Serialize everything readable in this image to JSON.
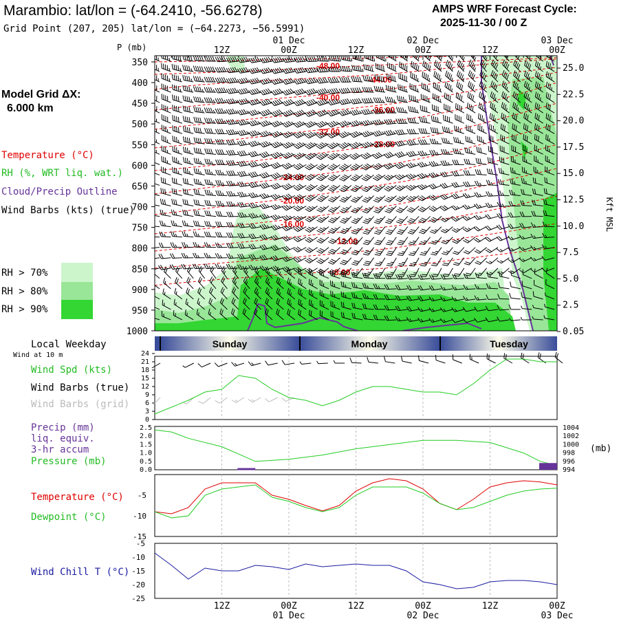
{
  "header": {
    "title": "Marambio:  lat/lon = (-64.2410, -56.6278)",
    "grid_point": "Grid Point (207, 205) lat/lon = (−64.2273, −56.5991)",
    "forecast_cycle_label": "AMPS WRF Forecast Cycle:",
    "forecast_cycle_value": "2025-11-30 / 00  Z"
  },
  "left_legend": {
    "model_grid_label": "Model Grid ΔX:",
    "model_grid_value": "6.000 km",
    "temperature": "Temperature (°C)",
    "rh": "RH (%, WRT liq. wat.)",
    "cloud": "Cloud/Precip Outline",
    "wind": "Wind Barbs (kts) (true)",
    "rh70": "RH > 70%",
    "rh80": "RH > 80%",
    "rh90": "RH > 90%",
    "local_weekday": "Local Weekday",
    "wind_at_10m": "Wind at 10 m",
    "wind_spd": "Wind Spd (kts)",
    "wind_barbs_true": "Wind Barbs (true)",
    "wind_barbs_grid": "Wind Barbs (grid)",
    "precip1": "Precip (mm)",
    "precip2": "liq. equiv.",
    "precip3": "3-hr accum",
    "pressure": "Pressure (mb)",
    "temp2": "Temperature (°C)",
    "dewpoint": "Dewpoint (°C)",
    "windchill": "Wind Chill T (°C)"
  },
  "colors": {
    "temperature": "#e00000",
    "rh": "#22cc22",
    "rh70": "#ccf5cc",
    "rh80": "#99e699",
    "rh90": "#33d633",
    "cloud": "#663399",
    "windchill": "#1a1aa0",
    "grid_barbs": "#bbbbbb"
  },
  "chart_data": [
    {
      "type": "contour",
      "name": "time-pressure cross section",
      "y_axis_label": "P (mb)",
      "y_ticks": [
        350,
        400,
        450,
        500,
        550,
        600,
        650,
        700,
        750,
        800,
        850,
        900,
        950,
        1000
      ],
      "right_axis_label": "Kft MSL",
      "right_ticks": [
        "25.0",
        "22.5",
        "20.0",
        "17.5",
        "15.0",
        "12.5",
        "10.0",
        "7.5",
        "5.0",
        "2.5",
        "0.05"
      ],
      "x_top_ticks": [
        "12Z",
        "00Z",
        "12Z",
        "00Z",
        "12Z",
        "00Z"
      ],
      "x_top_dates": [
        "01 Dec",
        "02 Dec",
        "03 Dec"
      ],
      "forecast_hours": [
        0,
        72
      ],
      "temperature_labels": [
        "-48.00",
        "-44.00",
        "-40.00",
        "-36.00",
        "-32.00",
        "-28.00",
        "-24.00",
        "-20.00",
        "-16.00",
        "-12.00",
        "-8.00"
      ]
    },
    {
      "type": "timeline",
      "name": "local weekday",
      "days": [
        "Sunday",
        "Monday",
        "Tuesday"
      ]
    },
    {
      "type": "line",
      "name": "wind speed",
      "ylabel": "kts",
      "y_ticks": [
        0,
        3,
        6,
        9,
        12,
        15,
        18,
        21,
        24
      ],
      "ylim": [
        0,
        24
      ],
      "x_hours": [
        0,
        6,
        9,
        12,
        15,
        18,
        21,
        24,
        27,
        30,
        33,
        36,
        39,
        42,
        45,
        48,
        51,
        54,
        57,
        60,
        63,
        66,
        69,
        72
      ],
      "values": [
        2,
        7,
        10,
        11,
        16,
        15,
        11,
        8,
        7,
        5,
        7,
        10,
        12,
        12,
        11,
        10,
        10,
        9,
        13,
        18,
        22,
        22,
        21,
        21
      ]
    },
    {
      "type": "line",
      "name": "pressure and precip",
      "left_ticks": [
        "0.0",
        "0.5",
        "1.0",
        "1.5",
        "2.0",
        "2.5"
      ],
      "right_ticks": [
        "994",
        "996",
        "998",
        "1000",
        "1002",
        "1004"
      ],
      "right_unit": "(mb)",
      "pressure_hours": [
        0,
        3,
        6,
        12,
        18,
        24,
        30,
        36,
        42,
        48,
        54,
        60,
        66,
        69,
        72
      ],
      "pressure_values": [
        1003.5,
        1003,
        1001.5,
        999.5,
        996,
        996.5,
        997.5,
        999,
        1000,
        1001,
        1001,
        1000.5,
        998,
        996,
        995
      ],
      "precip_bars": [
        {
          "hour": 18,
          "value": 0.1
        },
        {
          "hour": 72,
          "value": 0.4
        }
      ]
    },
    {
      "type": "line",
      "name": "temperature and dewpoint",
      "y_ticks": [
        -15,
        -10,
        -5
      ],
      "ylim": [
        -15,
        0
      ],
      "x_hours": [
        0,
        3,
        6,
        9,
        12,
        18,
        21,
        24,
        27,
        30,
        33,
        36,
        39,
        42,
        45,
        48,
        51,
        54,
        57,
        60,
        63,
        66,
        69,
        72
      ],
      "temperature": [
        -9,
        -9.5,
        -8,
        -3.5,
        -2,
        -2,
        -5,
        -6,
        -7.5,
        -8.8,
        -7.5,
        -4,
        -2,
        -1,
        -1.5,
        -3.5,
        -7,
        -8.5,
        -6,
        -3,
        -2,
        -1.5,
        -1.8,
        -2.5
      ],
      "dewpoint": [
        -9,
        -10.5,
        -10,
        -5,
        -3.5,
        -2.5,
        -5.5,
        -6.5,
        -8,
        -9,
        -8,
        -5,
        -3,
        -3,
        -3,
        -4.5,
        -7,
        -8.5,
        -8,
        -6.5,
        -5,
        -4,
        -3.5,
        -3.3
      ]
    },
    {
      "type": "line",
      "name": "wind chill",
      "y_ticks": [
        -25,
        -20,
        -15,
        -10,
        -5
      ],
      "ylim": [
        -25,
        -5
      ],
      "x_hours": [
        0,
        3,
        6,
        9,
        12,
        15,
        18,
        21,
        24,
        27,
        30,
        33,
        36,
        39,
        42,
        45,
        48,
        51,
        54,
        57,
        60,
        63,
        66,
        69,
        72
      ],
      "values": [
        -8.5,
        -13,
        -18,
        -14,
        -15,
        -15,
        -13,
        -13.5,
        -14.5,
        -12.5,
        -13.5,
        -13,
        -12.5,
        -13,
        -13,
        -15,
        -19,
        -20,
        -21.5,
        -21,
        -19,
        -18.5,
        -18.5,
        -19,
        -20
      ]
    }
  ]
}
